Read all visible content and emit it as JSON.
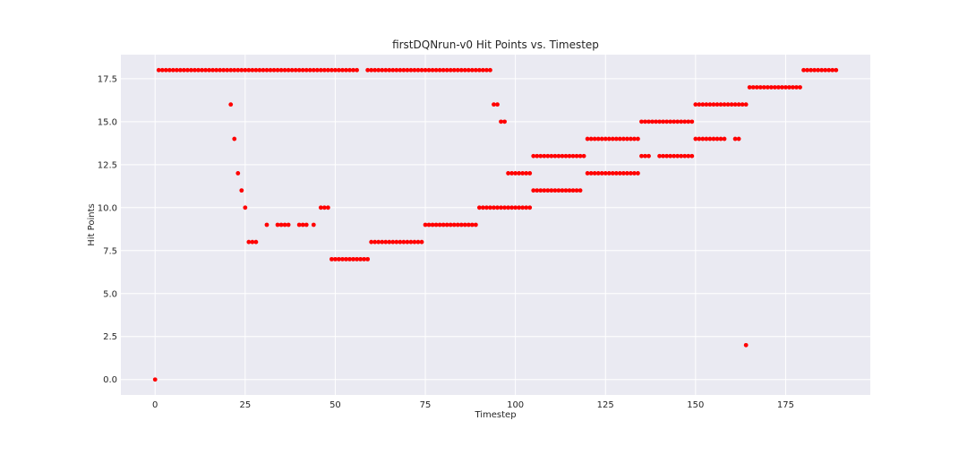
{
  "chart_data": {
    "type": "scatter",
    "title": "firstDQNrun-v0 Hit Points vs. Timestep",
    "xlabel": "Timestep",
    "ylabel": "Hit Points",
    "xlim": [
      -9.5,
      198.5
    ],
    "ylim": [
      -0.9,
      18.9
    ],
    "xticks": [
      0,
      25,
      50,
      75,
      100,
      125,
      150,
      175
    ],
    "yticks": [
      0.0,
      2.5,
      5.0,
      7.5,
      10.0,
      12.5,
      15.0,
      17.5
    ],
    "ytick_labels": [
      "0.0",
      "2.5",
      "5.0",
      "7.5",
      "10.0",
      "12.5",
      "15.0",
      "17.5"
    ],
    "grid": true,
    "background_color": "#eaeaf2",
    "marker_color": "#ff0000",
    "series": [
      {
        "points": [
          [
            0,
            0
          ],
          [
            1,
            18
          ],
          [
            2,
            18
          ],
          [
            3,
            18
          ],
          [
            4,
            18
          ],
          [
            5,
            18
          ],
          [
            6,
            18
          ],
          [
            7,
            18
          ],
          [
            8,
            18
          ],
          [
            9,
            18
          ],
          [
            10,
            18
          ],
          [
            11,
            18
          ],
          [
            12,
            18
          ],
          [
            13,
            18
          ],
          [
            14,
            18
          ],
          [
            15,
            18
          ],
          [
            16,
            18
          ],
          [
            17,
            18
          ],
          [
            18,
            18
          ],
          [
            19,
            18
          ],
          [
            20,
            18
          ],
          [
            21,
            18
          ],
          [
            22,
            18
          ],
          [
            23,
            18
          ],
          [
            24,
            18
          ],
          [
            25,
            18
          ],
          [
            26,
            18
          ],
          [
            27,
            18
          ],
          [
            28,
            18
          ],
          [
            29,
            18
          ],
          [
            30,
            18
          ],
          [
            31,
            18
          ],
          [
            32,
            18
          ],
          [
            33,
            18
          ],
          [
            34,
            18
          ],
          [
            35,
            18
          ],
          [
            36,
            18
          ],
          [
            37,
            18
          ],
          [
            38,
            18
          ],
          [
            39,
            18
          ],
          [
            40,
            18
          ],
          [
            41,
            18
          ],
          [
            42,
            18
          ],
          [
            43,
            18
          ],
          [
            44,
            18
          ],
          [
            45,
            18
          ],
          [
            46,
            18
          ],
          [
            47,
            18
          ],
          [
            48,
            18
          ],
          [
            49,
            18
          ],
          [
            50,
            18
          ],
          [
            51,
            18
          ],
          [
            52,
            18
          ],
          [
            53,
            18
          ],
          [
            54,
            18
          ],
          [
            55,
            18
          ],
          [
            56,
            18
          ],
          [
            59,
            18
          ],
          [
            60,
            18
          ],
          [
            61,
            18
          ],
          [
            62,
            18
          ],
          [
            63,
            18
          ],
          [
            64,
            18
          ],
          [
            65,
            18
          ],
          [
            66,
            18
          ],
          [
            67,
            18
          ],
          [
            68,
            18
          ],
          [
            69,
            18
          ],
          [
            70,
            18
          ],
          [
            71,
            18
          ],
          [
            72,
            18
          ],
          [
            73,
            18
          ],
          [
            74,
            18
          ],
          [
            75,
            18
          ],
          [
            76,
            18
          ],
          [
            77,
            18
          ],
          [
            78,
            18
          ],
          [
            79,
            18
          ],
          [
            80,
            18
          ],
          [
            81,
            18
          ],
          [
            82,
            18
          ],
          [
            83,
            18
          ],
          [
            84,
            18
          ],
          [
            85,
            18
          ],
          [
            86,
            18
          ],
          [
            87,
            18
          ],
          [
            88,
            18
          ],
          [
            89,
            18
          ],
          [
            90,
            18
          ],
          [
            91,
            18
          ],
          [
            92,
            18
          ],
          [
            93,
            18
          ],
          [
            21,
            16
          ],
          [
            22,
            14
          ],
          [
            23,
            12
          ],
          [
            24,
            11
          ],
          [
            25,
            10
          ],
          [
            26,
            8
          ],
          [
            27,
            8
          ],
          [
            28,
            8
          ],
          [
            31,
            9
          ],
          [
            34,
            9
          ],
          [
            35,
            9
          ],
          [
            36,
            9
          ],
          [
            37,
            9
          ],
          [
            40,
            9
          ],
          [
            41,
            9
          ],
          [
            42,
            9
          ],
          [
            44,
            9
          ],
          [
            46,
            10
          ],
          [
            47,
            10
          ],
          [
            48,
            10
          ],
          [
            49,
            7
          ],
          [
            50,
            7
          ],
          [
            51,
            7
          ],
          [
            52,
            7
          ],
          [
            53,
            7
          ],
          [
            54,
            7
          ],
          [
            55,
            7
          ],
          [
            56,
            7
          ],
          [
            57,
            7
          ],
          [
            58,
            7
          ],
          [
            59,
            7
          ],
          [
            60,
            8
          ],
          [
            61,
            8
          ],
          [
            62,
            8
          ],
          [
            63,
            8
          ],
          [
            64,
            8
          ],
          [
            65,
            8
          ],
          [
            66,
            8
          ],
          [
            67,
            8
          ],
          [
            68,
            8
          ],
          [
            69,
            8
          ],
          [
            70,
            8
          ],
          [
            71,
            8
          ],
          [
            72,
            8
          ],
          [
            73,
            8
          ],
          [
            74,
            8
          ],
          [
            75,
            9
          ],
          [
            76,
            9
          ],
          [
            77,
            9
          ],
          [
            78,
            9
          ],
          [
            79,
            9
          ],
          [
            80,
            9
          ],
          [
            81,
            9
          ],
          [
            82,
            9
          ],
          [
            83,
            9
          ],
          [
            84,
            9
          ],
          [
            85,
            9
          ],
          [
            86,
            9
          ],
          [
            87,
            9
          ],
          [
            88,
            9
          ],
          [
            89,
            9
          ],
          [
            90,
            10
          ],
          [
            91,
            10
          ],
          [
            92,
            10
          ],
          [
            93,
            10
          ],
          [
            94,
            10
          ],
          [
            95,
            10
          ],
          [
            96,
            10
          ],
          [
            97,
            10
          ],
          [
            98,
            10
          ],
          [
            99,
            10
          ],
          [
            100,
            10
          ],
          [
            101,
            10
          ],
          [
            102,
            10
          ],
          [
            103,
            10
          ],
          [
            104,
            10
          ],
          [
            94,
            16
          ],
          [
            95,
            16
          ],
          [
            96,
            15
          ],
          [
            97,
            15
          ],
          [
            98,
            12
          ],
          [
            99,
            12
          ],
          [
            100,
            12
          ],
          [
            101,
            12
          ],
          [
            102,
            12
          ],
          [
            103,
            12
          ],
          [
            104,
            12
          ],
          [
            105,
            13
          ],
          [
            106,
            13
          ],
          [
            107,
            13
          ],
          [
            108,
            13
          ],
          [
            109,
            13
          ],
          [
            110,
            13
          ],
          [
            111,
            13
          ],
          [
            112,
            13
          ],
          [
            113,
            13
          ],
          [
            114,
            13
          ],
          [
            115,
            13
          ],
          [
            116,
            13
          ],
          [
            117,
            13
          ],
          [
            118,
            13
          ],
          [
            119,
            13
          ],
          [
            105,
            11
          ],
          [
            106,
            11
          ],
          [
            107,
            11
          ],
          [
            108,
            11
          ],
          [
            109,
            11
          ],
          [
            110,
            11
          ],
          [
            111,
            11
          ],
          [
            112,
            11
          ],
          [
            113,
            11
          ],
          [
            114,
            11
          ],
          [
            115,
            11
          ],
          [
            116,
            11
          ],
          [
            117,
            11
          ],
          [
            118,
            11
          ],
          [
            120,
            14
          ],
          [
            121,
            14
          ],
          [
            122,
            14
          ],
          [
            123,
            14
          ],
          [
            124,
            14
          ],
          [
            125,
            14
          ],
          [
            126,
            14
          ],
          [
            127,
            14
          ],
          [
            128,
            14
          ],
          [
            129,
            14
          ],
          [
            130,
            14
          ],
          [
            131,
            14
          ],
          [
            132,
            14
          ],
          [
            133,
            14
          ],
          [
            134,
            14
          ],
          [
            120,
            12
          ],
          [
            121,
            12
          ],
          [
            122,
            12
          ],
          [
            123,
            12
          ],
          [
            124,
            12
          ],
          [
            125,
            12
          ],
          [
            126,
            12
          ],
          [
            127,
            12
          ],
          [
            128,
            12
          ],
          [
            129,
            12
          ],
          [
            130,
            12
          ],
          [
            131,
            12
          ],
          [
            132,
            12
          ],
          [
            133,
            12
          ],
          [
            134,
            12
          ],
          [
            135,
            15
          ],
          [
            136,
            15
          ],
          [
            137,
            15
          ],
          [
            138,
            15
          ],
          [
            139,
            15
          ],
          [
            140,
            15
          ],
          [
            141,
            15
          ],
          [
            142,
            15
          ],
          [
            143,
            15
          ],
          [
            144,
            15
          ],
          [
            145,
            15
          ],
          [
            146,
            15
          ],
          [
            147,
            15
          ],
          [
            148,
            15
          ],
          [
            149,
            15
          ],
          [
            135,
            13
          ],
          [
            136,
            13
          ],
          [
            137,
            13
          ],
          [
            140,
            13
          ],
          [
            141,
            13
          ],
          [
            142,
            13
          ],
          [
            143,
            13
          ],
          [
            144,
            13
          ],
          [
            145,
            13
          ],
          [
            146,
            13
          ],
          [
            147,
            13
          ],
          [
            148,
            13
          ],
          [
            149,
            13
          ],
          [
            150,
            16
          ],
          [
            151,
            16
          ],
          [
            152,
            16
          ],
          [
            153,
            16
          ],
          [
            154,
            16
          ],
          [
            155,
            16
          ],
          [
            156,
            16
          ],
          [
            157,
            16
          ],
          [
            158,
            16
          ],
          [
            159,
            16
          ],
          [
            160,
            16
          ],
          [
            161,
            16
          ],
          [
            162,
            16
          ],
          [
            163,
            16
          ],
          [
            164,
            16
          ],
          [
            150,
            14
          ],
          [
            151,
            14
          ],
          [
            152,
            14
          ],
          [
            153,
            14
          ],
          [
            154,
            14
          ],
          [
            155,
            14
          ],
          [
            156,
            14
          ],
          [
            157,
            14
          ],
          [
            158,
            14
          ],
          [
            161,
            14
          ],
          [
            162,
            14
          ],
          [
            164,
            2
          ],
          [
            165,
            17
          ],
          [
            166,
            17
          ],
          [
            167,
            17
          ],
          [
            168,
            17
          ],
          [
            169,
            17
          ],
          [
            170,
            17
          ],
          [
            171,
            17
          ],
          [
            172,
            17
          ],
          [
            173,
            17
          ],
          [
            174,
            17
          ],
          [
            175,
            17
          ],
          [
            176,
            17
          ],
          [
            177,
            17
          ],
          [
            178,
            17
          ],
          [
            179,
            17
          ],
          [
            180,
            18
          ],
          [
            181,
            18
          ],
          [
            182,
            18
          ],
          [
            183,
            18
          ],
          [
            184,
            18
          ],
          [
            185,
            18
          ],
          [
            186,
            18
          ],
          [
            187,
            18
          ],
          [
            188,
            18
          ],
          [
            189,
            18
          ]
        ]
      }
    ]
  }
}
